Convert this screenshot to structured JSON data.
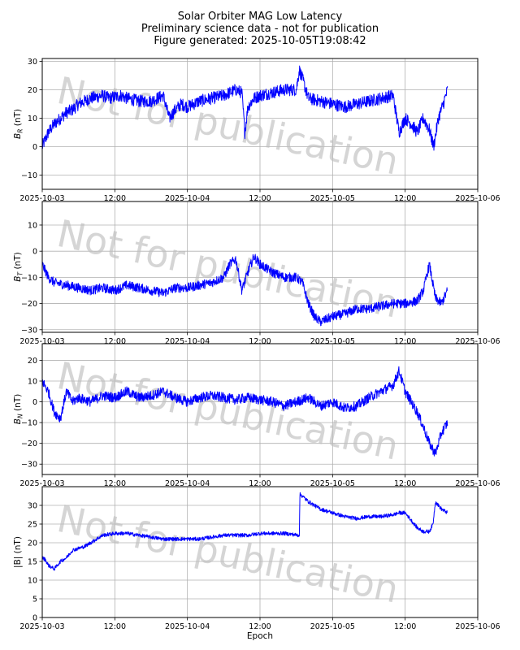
{
  "title": {
    "line1": "Solar Orbiter MAG Low Latency",
    "line2": "Preliminary science data - not for publication",
    "line3": "Figure generated: 2025-10-05T19:08:42"
  },
  "watermark": "Not for publication",
  "colors": {
    "line": "#0000ff",
    "grid": "#b0b0b0",
    "axis": "#000000",
    "watermark": "#bfbfbf"
  },
  "chart_data": [
    {
      "type": "line",
      "ylabel_main": "B",
      "ylabel_sub": "R",
      "ylabel_unit": " (nT)",
      "ylim": [
        -15,
        31
      ],
      "yticks": [
        -10,
        0,
        10,
        20,
        30
      ],
      "xlim": [
        0,
        72
      ],
      "xticks": [
        0,
        12,
        24,
        36,
        48,
        60,
        72
      ],
      "xticklabels": [
        "2025-10-03",
        "12:00",
        "2025-10-04",
        "12:00",
        "2025-10-05",
        "12:00",
        "2025-10-06"
      ],
      "grid": true,
      "noise_scale": 2.2,
      "x": [
        0,
        1,
        2,
        3,
        4,
        5,
        6,
        8,
        10,
        11,
        13,
        14,
        16,
        18,
        19,
        20,
        21,
        22,
        23,
        24,
        26,
        28,
        30,
        32,
        33,
        33.5,
        34,
        35,
        36,
        38,
        40,
        42,
        42.5,
        43,
        44,
        46,
        48,
        50,
        52,
        54,
        56,
        58,
        59,
        60,
        61,
        62,
        63,
        64,
        64.7,
        65.5,
        66.3,
        67
      ],
      "y": [
        0,
        5,
        8,
        10,
        12,
        13,
        15,
        17,
        18,
        17,
        18,
        17,
        16,
        16,
        17,
        18,
        10,
        13,
        15,
        14,
        16,
        17,
        18,
        20,
        19,
        5,
        14,
        17,
        18,
        19,
        20,
        20,
        27,
        24,
        17,
        16,
        15,
        14,
        15,
        16,
        17,
        18,
        5,
        10,
        8,
        5,
        10,
        6,
        0,
        10,
        15,
        20
      ]
    },
    {
      "type": "line",
      "ylabel_main": "B",
      "ylabel_sub": "T",
      "ylabel_unit": " (nT)",
      "ylim": [
        -31,
        19
      ],
      "yticks": [
        -30,
        -20,
        -10,
        0,
        10
      ],
      "xlim": [
        0,
        72
      ],
      "xticks": [
        0,
        12,
        24,
        36,
        48,
        60,
        72
      ],
      "xticklabels": [
        "2025-10-03",
        "12:00",
        "2025-10-04",
        "12:00",
        "2025-10-05",
        "12:00",
        "2025-10-06"
      ],
      "grid": true,
      "noise_scale": 1.8,
      "x": [
        0,
        1,
        2,
        4,
        6,
        8,
        10,
        12,
        14,
        16,
        18,
        20,
        22,
        24,
        26,
        28,
        30,
        31,
        32,
        33,
        34,
        35,
        36,
        38,
        40,
        42,
        43,
        44,
        45,
        46,
        47,
        48,
        50,
        52,
        54,
        56,
        58,
        60,
        62,
        63,
        64,
        65,
        66,
        67
      ],
      "y": [
        -5,
        -10,
        -12,
        -13,
        -14,
        -15,
        -14,
        -15,
        -13,
        -14,
        -15,
        -16,
        -14,
        -14,
        -13,
        -12,
        -10,
        -5,
        -3,
        -15,
        -8,
        -2,
        -5,
        -8,
        -10,
        -10,
        -12,
        -20,
        -25,
        -27,
        -26,
        -25,
        -24,
        -22,
        -22,
        -21,
        -20,
        -20,
        -19,
        -15,
        -5,
        -18,
        -20,
        -15
      ]
    },
    {
      "type": "line",
      "ylabel_main": "B",
      "ylabel_sub": "N",
      "ylabel_unit": " (nT)",
      "ylim": [
        -35,
        28
      ],
      "yticks": [
        -30,
        -20,
        -10,
        0,
        10,
        20
      ],
      "xlim": [
        0,
        72
      ],
      "xticks": [
        0,
        12,
        24,
        36,
        48,
        60,
        72
      ],
      "xticklabels": [
        "2025-10-03",
        "12:00",
        "2025-10-04",
        "12:00",
        "2025-10-05",
        "12:00",
        "2025-10-06"
      ],
      "grid": true,
      "noise_scale": 2.4,
      "x": [
        0,
        1,
        2,
        3,
        4,
        5,
        6,
        8,
        10,
        12,
        14,
        16,
        18,
        20,
        22,
        24,
        26,
        28,
        30,
        32,
        34,
        36,
        38,
        40,
        42,
        44,
        46,
        48,
        50,
        52,
        54,
        56,
        58,
        59,
        60,
        61,
        62,
        63,
        64,
        65,
        66,
        67
      ],
      "y": [
        10,
        5,
        -5,
        -8,
        5,
        0,
        2,
        0,
        3,
        2,
        5,
        2,
        3,
        5,
        2,
        0,
        2,
        3,
        2,
        1,
        2,
        1,
        0,
        -2,
        0,
        2,
        -2,
        0,
        -3,
        -2,
        2,
        5,
        8,
        15,
        5,
        0,
        -5,
        -12,
        -20,
        -25,
        -15,
        -10
      ]
    },
    {
      "type": "line",
      "ylabel_main": "|B| (nT)",
      "ylabel_sub": "",
      "ylabel_unit": "",
      "ylim": [
        0,
        35
      ],
      "yticks": [
        0,
        5,
        10,
        15,
        20,
        25,
        30
      ],
      "xlim": [
        0,
        72
      ],
      "xticks": [
        0,
        12,
        24,
        36,
        48,
        60,
        72
      ],
      "xticklabels": [
        "2025-10-03",
        "12:00",
        "2025-10-04",
        "12:00",
        "2025-10-05",
        "12:00",
        "2025-10-06"
      ],
      "xlabel": "Epoch",
      "grid": true,
      "noise_scale": 0.5,
      "x": [
        0,
        0.5,
        1,
        2,
        3,
        4,
        5,
        6,
        7,
        8,
        10,
        12,
        14,
        16,
        18,
        20,
        22,
        24,
        26,
        28,
        30,
        32,
        34,
        36,
        38,
        40,
        42.5,
        42.6,
        43,
        44,
        46,
        48,
        50,
        52,
        54,
        56,
        58,
        59,
        60,
        61,
        62,
        63,
        64,
        64.6,
        65,
        66,
        67
      ],
      "y": [
        16,
        15.5,
        14,
        13,
        15,
        16,
        18,
        18.5,
        19,
        20,
        22,
        22.5,
        22.5,
        22,
        21.5,
        21,
        21,
        21,
        21,
        21.5,
        22,
        22,
        22,
        22.5,
        22.5,
        22.5,
        22,
        33,
        32.5,
        31,
        29,
        28,
        27,
        26.5,
        27,
        27,
        27.5,
        28,
        28,
        26,
        24,
        23,
        23,
        25,
        31,
        29,
        28
      ]
    }
  ]
}
